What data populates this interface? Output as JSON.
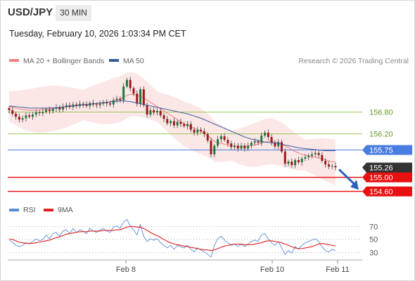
{
  "header": {
    "symbol": "USD/JPY",
    "timeframe": "30 MIN",
    "datetime": "Tuesday, February 10, 2026 1:03:34 PM CET"
  },
  "legend": {
    "bb_label": "MA 20 + Bollinger Bands",
    "ma50_label": "MA 50",
    "source": "Research © 2026 Trading Central"
  },
  "rsi_legend": {
    "rsi_label": "RSI",
    "ma_label": "9MA"
  },
  "colors": {
    "bb": "#f08080",
    "ma50": "#3a5a9a",
    "rsi": "#5b8bd6",
    "rsi_ma": "#e02020",
    "resistance": "#9ac85a",
    "pivot": "#4a7de0",
    "support": "#e81010",
    "last": "#333333",
    "candle_up": "#1e7a3c",
    "candle_down": "#a01818"
  },
  "chart_data": [
    {
      "type": "candlestick",
      "title": "",
      "x_ticks": [
        "Feb 8",
        "Feb 10",
        "Feb 11"
      ],
      "y_range": [
        154.45,
        157.55
      ],
      "levels": [
        {
          "label": "156.80",
          "value": 156.8,
          "kind": "resistance"
        },
        {
          "label": "156.20",
          "value": 156.2,
          "kind": "resistance"
        },
        {
          "label": "155.75",
          "value": 155.75,
          "kind": "pivot"
        },
        {
          "label": "155.26",
          "value": 155.26,
          "kind": "last"
        },
        {
          "label": "155.00",
          "value": 155.0,
          "kind": "support"
        },
        {
          "label": "154.60",
          "value": 154.6,
          "kind": "support"
        }
      ],
      "close": [
        156.84,
        156.74,
        156.66,
        156.58,
        156.62,
        156.7,
        156.66,
        156.72,
        156.78,
        156.76,
        156.8,
        156.86,
        156.82,
        156.88,
        156.92,
        156.86,
        156.94,
        156.98,
        156.93,
        157.0,
        156.96,
        157.02,
        157.0,
        156.96,
        157.04,
        157.0,
        156.98,
        157.02,
        157.06,
        157.03,
        157.0,
        157.12,
        157.16,
        157.12,
        157.5,
        157.68,
        157.45,
        157.3,
        157.02,
        157.42,
        156.98,
        156.72,
        156.84,
        156.78,
        156.82,
        156.7,
        156.6,
        156.48,
        156.54,
        156.42,
        156.52,
        156.46,
        156.4,
        156.46,
        156.3,
        156.22,
        156.3,
        156.26,
        156.18,
        156.0,
        155.62,
        155.86,
        156.04,
        156.12,
        156.02,
        155.92,
        155.82,
        155.86,
        155.78,
        155.86,
        155.78,
        155.86,
        155.94,
        155.98,
        155.94,
        156.14,
        156.22,
        156.1,
        155.94,
        155.84,
        155.96,
        155.7,
        155.36,
        155.42,
        155.32,
        155.46,
        155.4,
        155.5,
        155.54,
        155.58,
        155.62,
        155.66,
        155.6,
        155.44,
        155.34,
        155.28,
        155.3,
        155.26
      ],
      "ma20": [
        156.94,
        156.92,
        156.9,
        156.88,
        156.86,
        156.85,
        156.84,
        156.84,
        156.84,
        156.85,
        156.86,
        156.87,
        156.88,
        156.89,
        156.9,
        156.91,
        156.92,
        156.93,
        156.94,
        156.95,
        156.96,
        156.97,
        156.98,
        156.99,
        157.0,
        157.01,
        157.02,
        157.03,
        157.04,
        157.06,
        157.08,
        157.1,
        157.12,
        157.15,
        157.2,
        157.25,
        157.28,
        157.28,
        157.26,
        157.22,
        157.18,
        157.12,
        157.06,
        157.0,
        156.94,
        156.88,
        156.82,
        156.76,
        156.7,
        156.64,
        156.58,
        156.52,
        156.46,
        156.42,
        156.38,
        156.34,
        156.3,
        156.26,
        156.2,
        156.14,
        156.06,
        155.98,
        155.94,
        155.92,
        155.9,
        155.88,
        155.86,
        155.85,
        155.84,
        155.84,
        155.84,
        155.85,
        155.86,
        155.88,
        155.9,
        155.93,
        155.96,
        155.98,
        155.98,
        155.96,
        155.93,
        155.9,
        155.85,
        155.8,
        155.75,
        155.7,
        155.66,
        155.62,
        155.6,
        155.58,
        155.56,
        155.54,
        155.52,
        155.5,
        155.47,
        155.44,
        155.42,
        155.4
      ],
      "ma50": [
        156.96,
        156.95,
        156.94,
        156.93,
        156.92,
        156.91,
        156.9,
        156.9,
        156.9,
        156.9,
        156.9,
        156.9,
        156.9,
        156.9,
        156.91,
        156.92,
        156.93,
        156.94,
        156.95,
        156.96,
        156.97,
        156.98,
        156.99,
        157.0,
        157.01,
        157.02,
        157.03,
        157.04,
        157.05,
        157.06,
        157.07,
        157.08,
        157.09,
        157.1,
        157.1,
        157.09,
        157.08,
        157.06,
        157.04,
        157.02,
        157.0,
        156.98,
        156.96,
        156.94,
        156.92,
        156.9,
        156.88,
        156.86,
        156.84,
        156.82,
        156.8,
        156.78,
        156.76,
        156.74,
        156.71,
        156.68,
        156.65,
        156.62,
        156.58,
        156.54,
        156.5,
        156.46,
        156.42,
        156.38,
        156.34,
        156.3,
        156.26,
        156.22,
        156.18,
        156.14,
        156.1,
        156.07,
        156.04,
        156.02,
        156.0,
        155.98,
        155.96,
        155.95,
        155.94,
        155.93,
        155.92,
        155.9,
        155.88,
        155.86,
        155.84,
        155.82,
        155.8,
        155.79,
        155.78,
        155.77,
        155.76,
        155.75,
        155.74,
        155.73,
        155.72,
        155.72,
        155.72,
        155.72
      ]
    },
    {
      "type": "line",
      "title": "",
      "y_ticks": [
        70,
        50,
        30
      ],
      "y_range": [
        20,
        80
      ],
      "series": [
        {
          "name": "RSI",
          "values": [
            48,
            45,
            40,
            38,
            40,
            44,
            42,
            46,
            50,
            47,
            49,
            56,
            50,
            58,
            60,
            54,
            62,
            64,
            58,
            66,
            60,
            64,
            62,
            58,
            66,
            62,
            60,
            64,
            66,
            62,
            60,
            68,
            70,
            66,
            76,
            80,
            70,
            64,
            56,
            72,
            54,
            46,
            50,
            48,
            50,
            44,
            40,
            36,
            40,
            34,
            40,
            38,
            36,
            40,
            34,
            30,
            36,
            33,
            30,
            26,
            22,
            40,
            50,
            54,
            48,
            44,
            40,
            42,
            38,
            42,
            38,
            42,
            46,
            48,
            46,
            56,
            58,
            50,
            44,
            40,
            46,
            36,
            26,
            32,
            28,
            38,
            34,
            40,
            44,
            46,
            48,
            50,
            46,
            38,
            32,
            30,
            34,
            32
          ]
        },
        {
          "name": "9MA",
          "values": [
            50,
            49,
            47,
            45,
            44,
            43,
            43,
            43,
            44,
            45,
            46,
            47,
            48,
            50,
            52,
            53,
            55,
            57,
            58,
            59,
            60,
            61,
            61,
            61,
            62,
            62,
            62,
            62,
            63,
            63,
            63,
            63,
            64,
            64,
            66,
            68,
            69,
            69,
            68,
            68,
            66,
            63,
            60,
            57,
            55,
            52,
            49,
            46,
            44,
            42,
            41,
            40,
            39,
            38,
            37,
            36,
            35,
            34,
            33,
            33,
            32,
            33,
            35,
            37,
            39,
            40,
            41,
            42,
            42,
            42,
            41,
            41,
            41,
            42,
            43,
            44,
            46,
            47,
            47,
            46,
            45,
            44,
            42,
            40,
            38,
            36,
            35,
            35,
            36,
            37,
            38,
            40,
            42,
            43,
            42,
            41,
            40,
            39
          ]
        }
      ]
    }
  ]
}
